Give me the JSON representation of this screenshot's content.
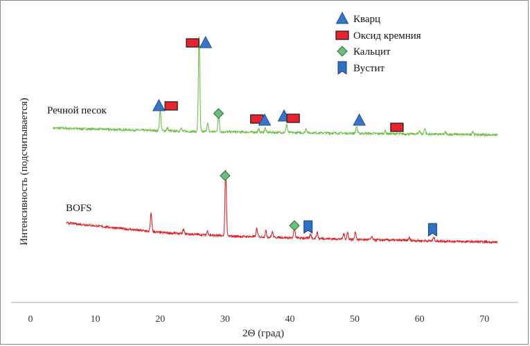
{
  "chart_data": {
    "type": "line",
    "title": "",
    "xlabel": "2Θ (град)",
    "ylabel": "Интенсивность (подсчитывается)",
    "xlim": [
      0,
      72
    ],
    "xticks": [
      0,
      10,
      20,
      30,
      40,
      50,
      60,
      70
    ],
    "grid": false,
    "legend": [
      {
        "name": "Кварц",
        "marker": "triangle",
        "color": "#3b73c6"
      },
      {
        "name": "Оксид кремния",
        "marker": "rectangle",
        "color": "#e8232d"
      },
      {
        "name": "Кальцит",
        "marker": "diamond",
        "color": "#6cc07a"
      },
      {
        "name": "Вустит",
        "marker": "pennant",
        "color": "#2f6fc4"
      }
    ],
    "series": [
      {
        "name": "Речной песок",
        "color": "#6dbe45",
        "x_range": [
          3.5,
          72
        ],
        "baseline": [
          [
            3.5,
            10
          ],
          [
            25,
            5
          ],
          [
            72,
            0
          ]
        ],
        "peaks": [
          {
            "x": 20.0,
            "h": 30
          },
          {
            "x": 21.1,
            "h": 4
          },
          {
            "x": 23.2,
            "h": 5
          },
          {
            "x": 26.0,
            "h": 138
          },
          {
            "x": 27.3,
            "h": 12
          },
          {
            "x": 29.0,
            "h": 26
          },
          {
            "x": 35.2,
            "h": 4
          },
          {
            "x": 36.2,
            "h": 6
          },
          {
            "x": 39.5,
            "h": 12
          },
          {
            "x": 42.5,
            "h": 6
          },
          {
            "x": 50.3,
            "h": 10
          },
          {
            "x": 54.7,
            "h": 4
          },
          {
            "x": 60.0,
            "h": 5
          },
          {
            "x": 60.8,
            "h": 9
          },
          {
            "x": 64.0,
            "h": 3
          },
          {
            "x": 68.2,
            "h": 5
          }
        ],
        "markers": [
          {
            "type": "Кварц",
            "x": 19.8,
            "h": 42
          },
          {
            "type": "Оксид кремния",
            "x": 21.7,
            "h": 42
          },
          {
            "type": "Оксид кремния",
            "x": 25.0,
            "h": 133
          },
          {
            "type": "Кварц",
            "x": 27.0,
            "h": 133
          },
          {
            "type": "Кальцит",
            "x": 29.0,
            "h": 31
          },
          {
            "type": "Оксид кремния",
            "x": 34.9,
            "h": 23
          },
          {
            "type": "Кварц",
            "x": 36.1,
            "h": 21
          },
          {
            "type": "Кварц",
            "x": 39.1,
            "h": 27
          },
          {
            "type": "Оксид кремния",
            "x": 40.5,
            "h": 24
          },
          {
            "type": "Кварц",
            "x": 50.7,
            "h": 21
          },
          {
            "type": "Оксид кремния",
            "x": 56.5,
            "h": 11
          }
        ]
      },
      {
        "name": "BOFS",
        "color": "#d8232a",
        "x_range": [
          5.5,
          72
        ],
        "baseline": [
          [
            5.5,
            30
          ],
          [
            20,
            16
          ],
          [
            30,
            11
          ],
          [
            50,
            6
          ],
          [
            72,
            2
          ]
        ],
        "peaks": [
          {
            "x": 18.6,
            "h": 26
          },
          {
            "x": 23.6,
            "h": 6
          },
          {
            "x": 27.3,
            "h": 6
          },
          {
            "x": 30.1,
            "h": 97
          },
          {
            "x": 34.9,
            "h": 12
          },
          {
            "x": 36.3,
            "h": 9
          },
          {
            "x": 37.3,
            "h": 8
          },
          {
            "x": 40.7,
            "h": 14
          },
          {
            "x": 43.2,
            "h": 6
          },
          {
            "x": 44.2,
            "h": 9
          },
          {
            "x": 48.3,
            "h": 8
          },
          {
            "x": 48.9,
            "h": 10
          },
          {
            "x": 50.1,
            "h": 11
          },
          {
            "x": 52.6,
            "h": 4
          },
          {
            "x": 58.4,
            "h": 4
          },
          {
            "x": 62.2,
            "h": 5
          }
        ],
        "markers": [
          {
            "type": "Кальцит",
            "x": 30.0,
            "h": 98
          },
          {
            "type": "Кальцит",
            "x": 40.7,
            "h": 26
          },
          {
            "type": "Вустит",
            "x": 42.8,
            "h": 24
          },
          {
            "type": "Вустит",
            "x": 62.0,
            "h": 20
          }
        ]
      }
    ]
  }
}
